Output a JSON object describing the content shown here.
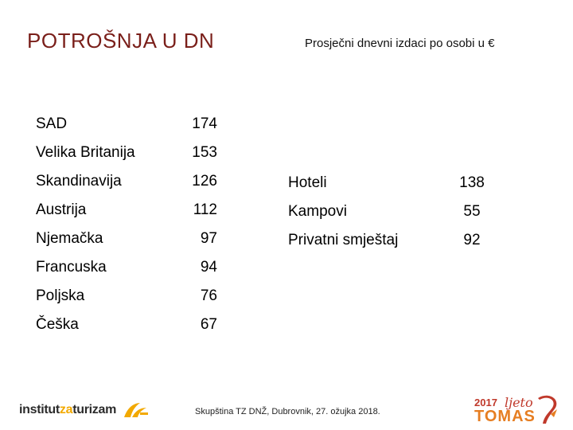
{
  "title": "POTROŠNJA U DN",
  "subtitle": "Prosječni dnevni izdaci po osobi u €",
  "countries": [
    {
      "label": "SAD",
      "value": "174"
    },
    {
      "label": "Velika Britanija",
      "value": "153"
    },
    {
      "label": "Skandinavija",
      "value": "126"
    },
    {
      "label": "Austrija",
      "value": "112"
    },
    {
      "label": "Njemačka",
      "value": "97"
    },
    {
      "label": "Francuska",
      "value": "94"
    },
    {
      "label": "Poljska",
      "value": "76"
    },
    {
      "label": "Češka",
      "value": "67"
    }
  ],
  "accommodation": [
    {
      "label": "Hoteli",
      "value": "138"
    },
    {
      "label": "Kampovi",
      "value": "55"
    },
    {
      "label": "Privatni smještaj",
      "value": "92"
    }
  ],
  "footer": {
    "text": "Skupština TZ DNŽ, Dubrovnik, 27. ožujka 2018.",
    "logo_left": {
      "part1": "institut",
      "part2": "za",
      "part3": "turizam"
    },
    "logo_right": {
      "year": "2017",
      "word1": "ljeto",
      "word2": "TOMAS"
    },
    "colors": {
      "title": "#7a1f1a",
      "accent_orange": "#f2a900",
      "accent_red": "#c0392b"
    }
  }
}
